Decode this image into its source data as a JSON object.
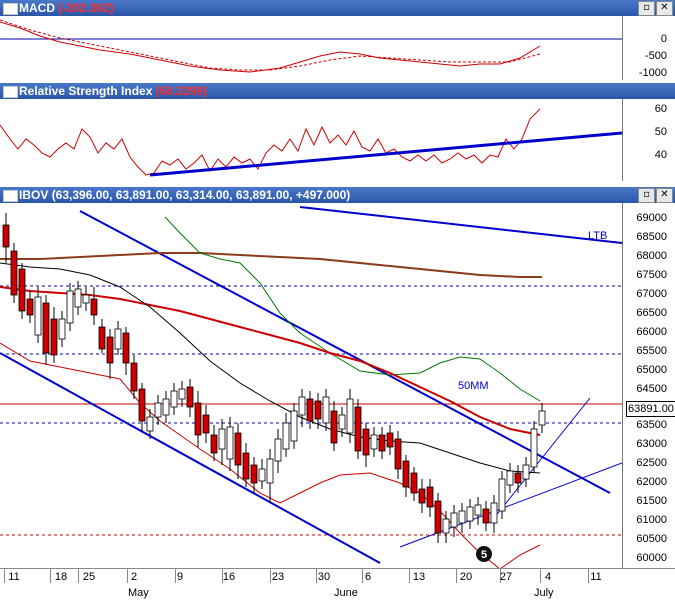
{
  "macd": {
    "title": "MACD",
    "value": "(-202.362)",
    "ticks": [
      "0",
      "-500",
      "-1000"
    ]
  },
  "rsi": {
    "title": "Relative Strength Index",
    "value": "(60.2299)",
    "ticks": [
      "60",
      "50",
      "40"
    ]
  },
  "main": {
    "title": "IBOV",
    "ohlc": "(63,396.00, 63,891.00, 63,314.00, 63,891.00, +497.000)",
    "price_label": "63891.00",
    "annotation_ltb": "LTB",
    "annotation_50mm": "50MM",
    "marker": "5",
    "ticks": [
      "69000",
      "68500",
      "68000",
      "67500",
      "67000",
      "66500",
      "66000",
      "65500",
      "65000",
      "64500",
      "64000",
      "63500",
      "63000",
      "62500",
      "62000",
      "61500",
      "61000",
      "60500",
      "60000"
    ]
  },
  "xaxis": {
    "day_labels": [
      "11",
      "18",
      "25",
      "2",
      "9",
      "16",
      "23",
      "30",
      "6",
      "13",
      "20",
      "27",
      "4",
      "11"
    ],
    "month_labels": [
      "May",
      "June",
      "July"
    ]
  },
  "window_buttons": {
    "restore": "▫",
    "close": "✕"
  },
  "colors": {
    "title_bar": "#2a56a8",
    "price_red": "#cc0000",
    "trend_blue": "#0000cc",
    "ma_green": "#007a00",
    "ma_brown": "#8b3a1a"
  }
}
